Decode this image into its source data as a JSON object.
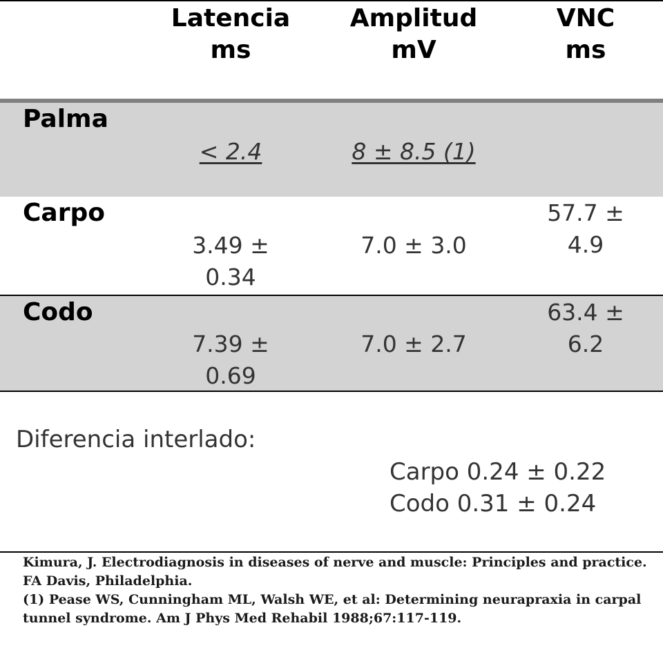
{
  "table": {
    "columns": [
      {
        "line1": "Latencia",
        "line2": "ms"
      },
      {
        "line1": "Amplitud",
        "line2": "mV"
      },
      {
        "line1": "VNC",
        "line2": "ms"
      }
    ],
    "rows": [
      {
        "label": "Palma",
        "latencia": "< 2.4",
        "amplitud": "8 ± 8.5 (1)",
        "vnc": ""
      },
      {
        "label": "Carpo",
        "latencia_l1": "3.49 ±",
        "latencia_l2": "0.34",
        "amplitud": "7.0 ± 3.0",
        "vnc_l1": "57.7 ±",
        "vnc_l2": "4.9"
      },
      {
        "label": "Codo",
        "latencia_l1": "7.39 ±",
        "latencia_l2": "0.69",
        "amplitud": "7.0 ± 2.7",
        "vnc_l1": "63.4 ±",
        "vnc_l2": "6.2"
      }
    ]
  },
  "difference": {
    "label": "Diferencia interlado:",
    "lines": [
      "Carpo 0.24 ± 0.22",
      "Codo 0.31 ± 0.24"
    ]
  },
  "references": [
    "Kimura, J. Electrodiagnosis in diseases of nerve and muscle: Principles and practice. FA Davis, Philadelphia.",
    "(1) Pease WS, Cunningham ML, Walsh WE, et al: Determining neurapraxia in carpal tunnel syndrome. Am J Phys Med Rehabil 1988;67:117-119."
  ]
}
